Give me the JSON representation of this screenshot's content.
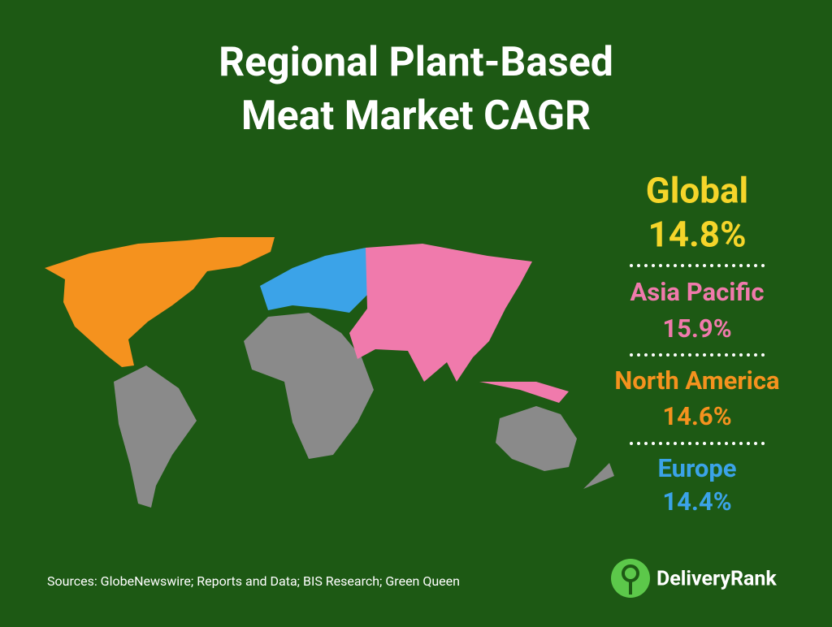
{
  "header": {
    "title_lines": [
      "Regional Plant-Based",
      "Meat Market CAGR"
    ]
  },
  "stats": [
    {
      "label": "Global",
      "value": "14.8%"
    },
    {
      "label": "Asia Pacific",
      "value": "15.9%"
    },
    {
      "label": "North America",
      "value": "14.6%"
    },
    {
      "label": "Europe",
      "value": "14.4%"
    }
  ],
  "footer": {
    "sources": "Sources: GlobeNewswire; Reports and Data; BIS Research; Green Queen",
    "brand": "DeliveryRank"
  }
}
